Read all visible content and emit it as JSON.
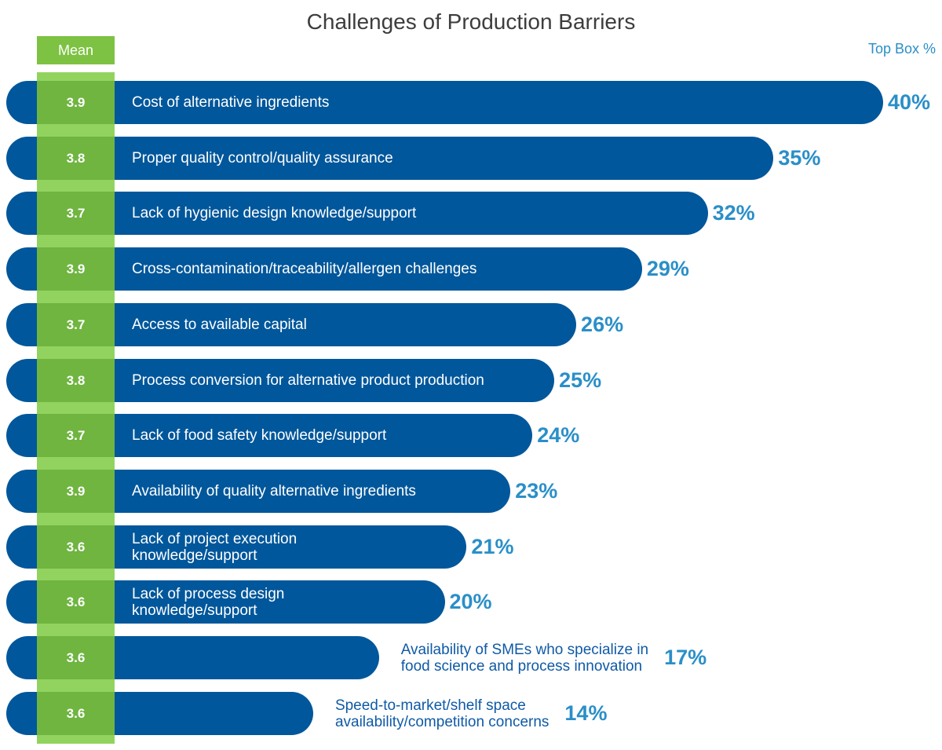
{
  "chart_data": {
    "type": "bar",
    "orientation": "horizontal",
    "title": "Challenges of Production Barriers",
    "mean_header": "Mean",
    "value_header": "Top Box %",
    "xlim": [
      0,
      40
    ],
    "categories": [
      "Cost of alternative ingredients",
      "Proper quality control/quality assurance",
      "Lack of hygienic design knowledge/support",
      "Cross-contamination/traceability/allergen challenges",
      "Access to available capital",
      "Process conversion for alternative product production",
      "Lack of food safety knowledge/support",
      "Availability of quality alternative ingredients",
      "Lack of project execution\nknowledge/support",
      "Lack of process design\nknowledge/support",
      "Availability of SMEs who specialize in\nfood science and process innovation",
      "Speed-to-market/shelf space\navailability/competition concerns"
    ],
    "values": [
      40,
      35,
      32,
      29,
      26,
      25,
      24,
      23,
      21,
      20,
      17,
      14
    ],
    "value_labels": [
      "40%",
      "35%",
      "32%",
      "29%",
      "26%",
      "25%",
      "24%",
      "23%",
      "21%",
      "20%",
      "17%",
      "14%"
    ],
    "means": [
      3.9,
      3.8,
      3.7,
      3.9,
      3.7,
      3.8,
      3.7,
      3.9,
      3.6,
      3.6,
      3.6,
      3.6
    ],
    "mean_labels": [
      "3.9",
      "3.8",
      "3.7",
      "3.9",
      "3.7",
      "3.8",
      "3.7",
      "3.9",
      "3.6",
      "3.6",
      "3.6",
      "3.6"
    ],
    "colors": {
      "bar": "#01579b",
      "mean": "#7dc242",
      "value_label": "#2a8fc8"
    }
  }
}
